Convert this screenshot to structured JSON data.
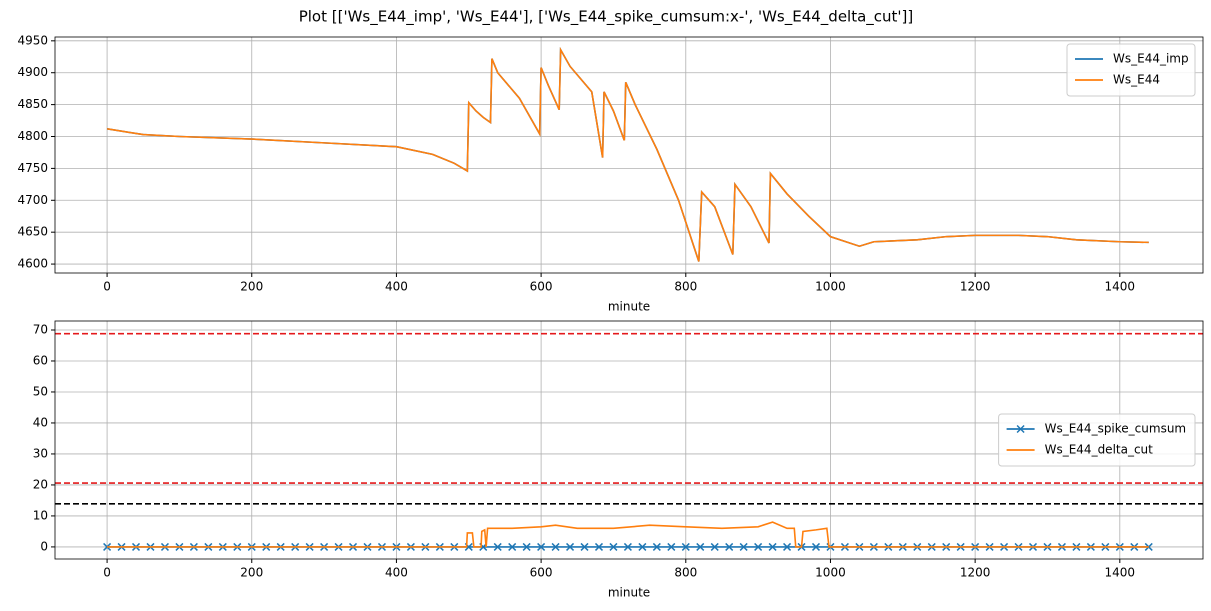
{
  "title": "Plot [['Ws_E44_imp', 'Ws_E44'], ['Ws_E44_spike_cumsum:x-', 'Ws_E44_delta_cut']]",
  "chart_data": [
    {
      "type": "line",
      "xlabel": "minute",
      "x": [
        0,
        50,
        100,
        200,
        300,
        400,
        450,
        480,
        498,
        500,
        510,
        520,
        530,
        532,
        540,
        570,
        598,
        600,
        610,
        625,
        627,
        640,
        670,
        685,
        687,
        700,
        715,
        717,
        730,
        760,
        790,
        818,
        822,
        840,
        865,
        868,
        890,
        915,
        917,
        940,
        970,
        1000,
        1040,
        1060,
        1120,
        1160,
        1200,
        1260,
        1300,
        1340,
        1400,
        1440
      ],
      "series": [
        {
          "name": "Ws_E44_imp",
          "color": "#1f77b4",
          "values": [
            4812,
            4803,
            4800,
            4796,
            4790,
            4784,
            4772,
            4758,
            4746,
            4853,
            4840,
            4830,
            4822,
            4922,
            4900,
            4860,
            4804,
            4908,
            4880,
            4842,
            4936,
            4910,
            4870,
            4767,
            4870,
            4840,
            4794,
            4885,
            4850,
            4780,
            4700,
            4604,
            4713,
            4690,
            4615,
            4725,
            4690,
            4633,
            4742,
            4710,
            4675,
            4643,
            4628,
            4635,
            4638,
            4643,
            4645,
            4645,
            4643,
            4638,
            4635,
            4634
          ]
        },
        {
          "name": "Ws_E44",
          "color": "#ff7f0e",
          "values": [
            4812,
            4803,
            4800,
            4796,
            4790,
            4784,
            4772,
            4758,
            4746,
            4853,
            4840,
            4830,
            4822,
            4922,
            4900,
            4860,
            4804,
            4908,
            4880,
            4842,
            4936,
            4910,
            4870,
            4767,
            4870,
            4840,
            4794,
            4885,
            4850,
            4780,
            4700,
            4604,
            4713,
            4690,
            4615,
            4725,
            4690,
            4633,
            4742,
            4710,
            4675,
            4643,
            4628,
            4635,
            4638,
            4643,
            4645,
            4645,
            4643,
            4638,
            4635,
            4634
          ]
        }
      ],
      "xlim": [
        -72,
        1515
      ],
      "ylim": [
        4586,
        4956
      ],
      "xticks": [
        0,
        200,
        400,
        600,
        800,
        1000,
        1200,
        1400
      ],
      "yticks": [
        4600,
        4650,
        4700,
        4750,
        4800,
        4850,
        4900,
        4950
      ],
      "grid": true,
      "legend": "upper right"
    },
    {
      "type": "line",
      "xlabel": "minute",
      "series": [
        {
          "name": "Ws_E44_spike_cumsum",
          "color": "#1f77b4",
          "marker": "x",
          "x": [
            0,
            20,
            40,
            60,
            80,
            100,
            120,
            140,
            160,
            180,
            200,
            220,
            240,
            260,
            280,
            300,
            320,
            340,
            360,
            380,
            400,
            420,
            440,
            460,
            480,
            500,
            520,
            540,
            560,
            580,
            600,
            620,
            640,
            660,
            680,
            700,
            720,
            740,
            760,
            780,
            800,
            820,
            840,
            860,
            880,
            900,
            920,
            940,
            960,
            980,
            1000,
            1020,
            1040,
            1060,
            1080,
            1100,
            1120,
            1140,
            1160,
            1180,
            1200,
            1220,
            1240,
            1260,
            1280,
            1300,
            1320,
            1340,
            1360,
            1380,
            1400,
            1420,
            1440
          ],
          "values": [
            0,
            0,
            0,
            0,
            0,
            0,
            0,
            0,
            0,
            0,
            0,
            0,
            0,
            0,
            0,
            0,
            0,
            0,
            0,
            0,
            0,
            0,
            0,
            0,
            0,
            0,
            0,
            0,
            0,
            0,
            0,
            0,
            0,
            0,
            0,
            0,
            0,
            0,
            0,
            0,
            0,
            0,
            0,
            0,
            0,
            0,
            0,
            0,
            0,
            0,
            0,
            0,
            0,
            0,
            0,
            0,
            0,
            0,
            0,
            0,
            0,
            0,
            0,
            0,
            0,
            0,
            0,
            0,
            0,
            0,
            0,
            0,
            0
          ]
        },
        {
          "name": "Ws_E44_delta_cut",
          "color": "#ff7f0e",
          "x": [
            0,
            497,
            498,
            505,
            507,
            517,
            518,
            522,
            524,
            526,
            530,
            560,
            600,
            620,
            650,
            700,
            750,
            800,
            850,
            900,
            920,
            940,
            950,
            952,
            960,
            962,
            980,
            995,
            998,
            1440
          ],
          "values": [
            0,
            0,
            4.5,
            4.5,
            0,
            0,
            5,
            5.5,
            0,
            6,
            6,
            6,
            6.5,
            7,
            6,
            6,
            7,
            6.5,
            6,
            6.5,
            8,
            6,
            6,
            0,
            0,
            5,
            5.5,
            6,
            0,
            0
          ]
        }
      ],
      "hlines": [
        {
          "value": 68.8,
          "color": "#e41a1c",
          "style": "dashed"
        },
        {
          "value": 20.6,
          "color": "#e41a1c",
          "style": "dashed"
        },
        {
          "value": 13.9,
          "color": "#000000",
          "style": "dashed"
        }
      ],
      "xlim": [
        -72,
        1515
      ],
      "ylim": [
        -3.9,
        72.9
      ],
      "xticks": [
        0,
        200,
        400,
        600,
        800,
        1000,
        1200,
        1400
      ],
      "yticks": [
        0,
        10,
        20,
        30,
        40,
        50,
        60,
        70
      ],
      "grid": true,
      "legend": "center right"
    }
  ]
}
